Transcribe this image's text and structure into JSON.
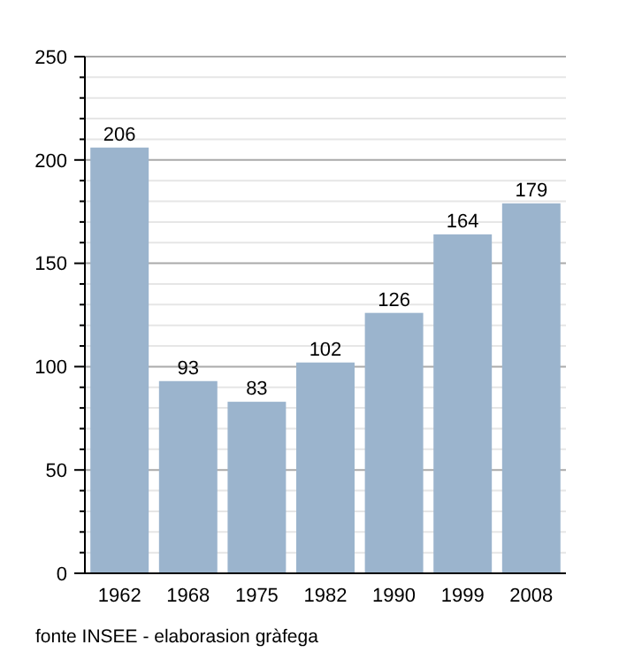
{
  "chart_data": {
    "type": "bar",
    "categories": [
      "1962",
      "1968",
      "1975",
      "1982",
      "1990",
      "1999",
      "2008"
    ],
    "values": [
      206,
      93,
      83,
      102,
      126,
      164,
      179
    ],
    "color": "#9bb4cd",
    "data_labels": true,
    "ylim": [
      0,
      250
    ],
    "yticks": [
      0,
      {
        "value": 10,
        "label": null
      },
      {
        "value": 20,
        "label": null
      },
      {
        "value": 30,
        "label": null
      },
      {
        "value": 40,
        "label": null
      },
      50,
      {
        "value": 60,
        "label": null
      },
      {
        "value": 70,
        "label": null
      },
      {
        "value": 80,
        "label": null
      },
      {
        "value": 90,
        "label": null
      },
      100,
      {
        "value": 110,
        "label": null
      },
      {
        "value": 120,
        "label": null
      },
      {
        "value": 130,
        "label": null
      },
      {
        "value": 140,
        "label": null
      },
      150,
      {
        "value": 160,
        "label": null
      },
      {
        "value": 170,
        "label": null
      },
      {
        "value": 180,
        "label": null
      },
      {
        "value": 190,
        "label": null
      },
      200,
      {
        "value": 210,
        "label": null
      },
      {
        "value": 220,
        "label": null
      },
      {
        "value": 230,
        "label": null
      },
      {
        "value": 240,
        "label": null
      },
      250
    ],
    "grid": "y",
    "annotations": [
      "fonte INSEE - elaborasion gràfega"
    ]
  }
}
